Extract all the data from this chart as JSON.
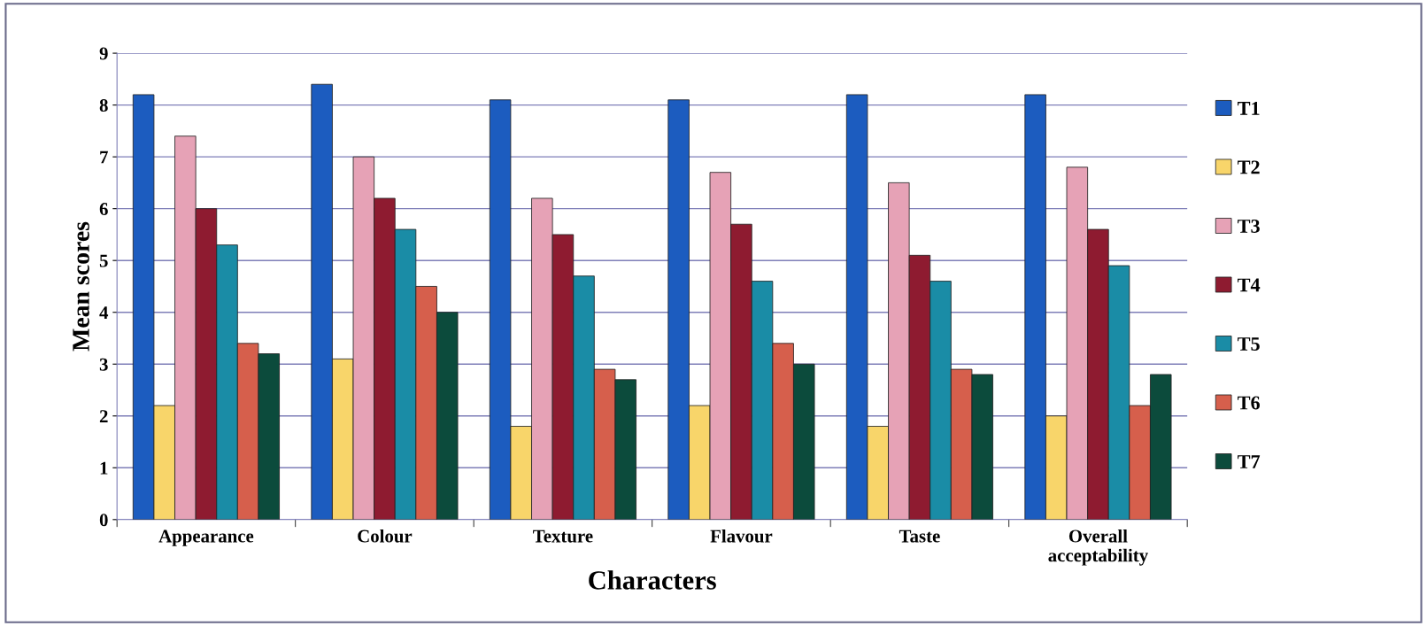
{
  "chart_data": {
    "type": "bar",
    "xlabel": "Characters",
    "ylabel": "Mean scores",
    "categories": [
      "Appearance",
      "Colour",
      "Texture",
      "Flavour",
      "Taste",
      "Overall\nacceptability"
    ],
    "series": [
      {
        "name": "T1",
        "color": "#1c5cbf",
        "values": [
          8.2,
          8.4,
          8.1,
          8.1,
          8.2,
          8.2
        ]
      },
      {
        "name": "T2",
        "color": "#f8d56a",
        "values": [
          2.2,
          3.1,
          1.8,
          2.2,
          1.8,
          2.0
        ]
      },
      {
        "name": "T3",
        "color": "#e6a2b6",
        "values": [
          7.4,
          7.0,
          6.2,
          6.7,
          6.5,
          6.8
        ]
      },
      {
        "name": "T4",
        "color": "#8e1b30",
        "values": [
          6.0,
          6.2,
          5.5,
          5.7,
          5.1,
          5.6
        ]
      },
      {
        "name": "T5",
        "color": "#1a8ca6",
        "values": [
          5.3,
          5.6,
          4.7,
          4.6,
          4.6,
          4.9
        ]
      },
      {
        "name": "T6",
        "color": "#d65f4c",
        "values": [
          3.4,
          4.5,
          2.9,
          3.4,
          2.9,
          2.2
        ]
      },
      {
        "name": "T7",
        "color": "#0c4b3c",
        "values": [
          3.2,
          4.0,
          2.7,
          3.0,
          2.8,
          2.8
        ]
      }
    ],
    "ylim": [
      0,
      9
    ],
    "yticks": [
      0,
      1,
      2,
      3,
      4,
      5,
      6,
      7,
      8,
      9
    ],
    "grid": "y",
    "legend": "right"
  }
}
